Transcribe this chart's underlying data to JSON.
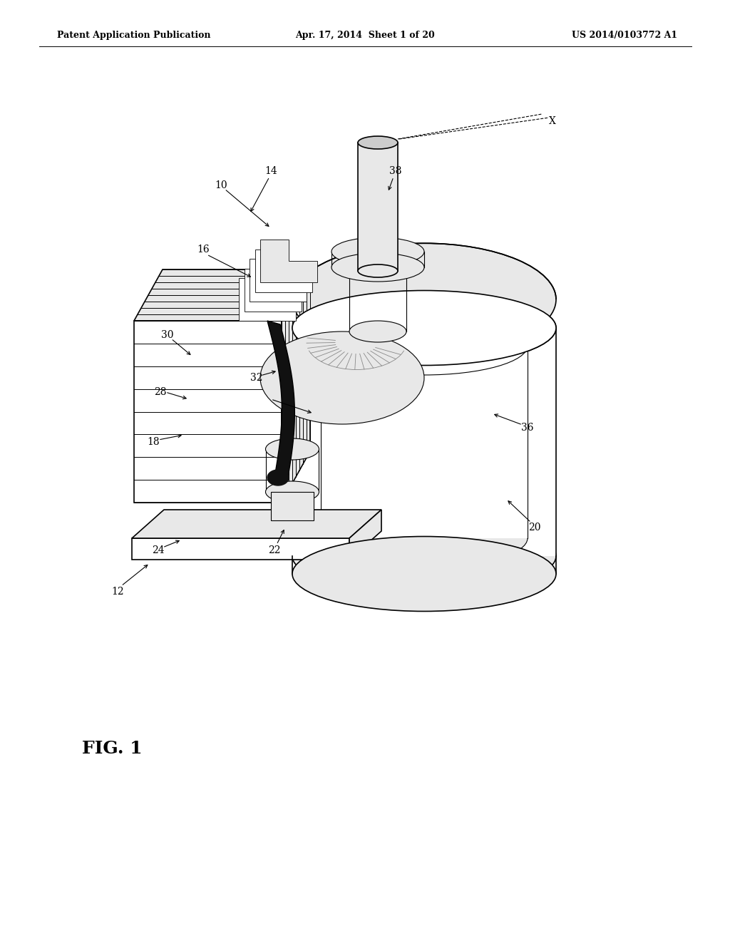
{
  "header_left": "Patent Application Publication",
  "header_mid": "Apr. 17, 2014  Sheet 1 of 20",
  "header_right": "US 2014/0103772 A1",
  "figure_label": "FIG. 1",
  "bg_color": "#ffffff",
  "lc": "#000000",
  "gray_light": "#e8e8e8",
  "gray_mid": "#cccccc",
  "gray_dark": "#999999",
  "header_fontsize": 9,
  "label_fontsize": 10,
  "fig_label_fontsize": 18
}
